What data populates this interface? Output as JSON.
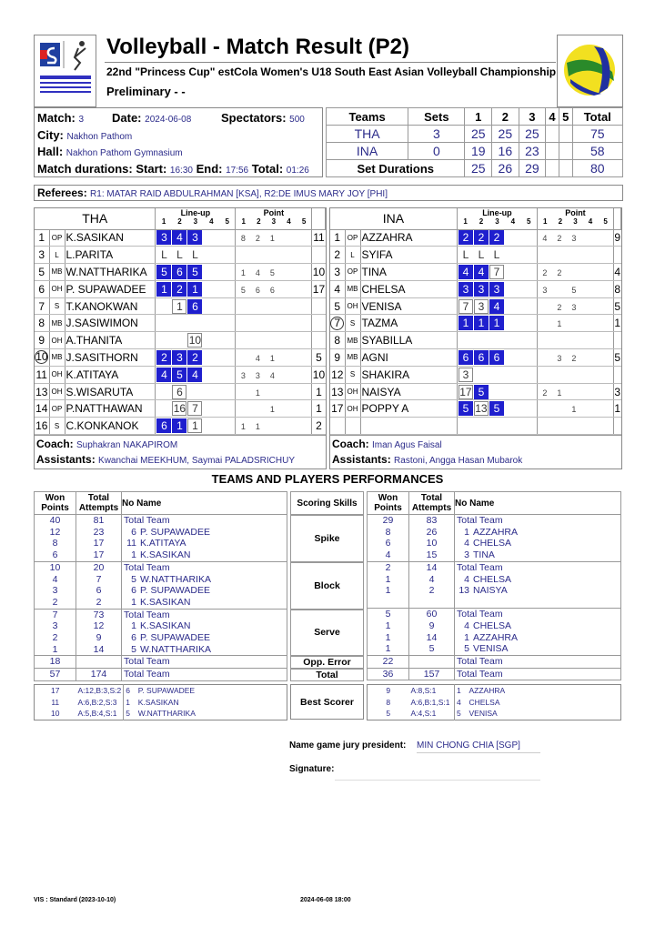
{
  "header": {
    "title": "Volleyball - Match Result (P2)",
    "subtitle": "22nd \"Princess Cup\" estCola  Women's U18 South East Asian Volleyball Championship",
    "phase": "Preliminary - -",
    "left_logo_text": "22nd \"PRINCESS CUP\" WOMEN'S U18 SOUTH EAST ASIAN VOLLEYBALL CHAMPIONSHIP",
    "right_logo_text": "SAVA"
  },
  "match": {
    "match_label": "Match:",
    "match": "3",
    "date_label": "Date:",
    "date": "2024-06-08",
    "spectators_label": "Spectators:",
    "spectators": "500",
    "city_label": "City:",
    "city": "Nakhon Pathom",
    "hall_label": "Hall:",
    "hall": "Nakhon Pathom Gymnasium",
    "dur_label": "Match durations: Start:",
    "start": "16:30",
    "end_label": "End:",
    "end": "17:56",
    "total_label": "Total:",
    "total": "01:26"
  },
  "score": {
    "headers": [
      "Teams",
      "Sets",
      "1",
      "2",
      "3",
      "4",
      "5",
      "Total"
    ],
    "rows": [
      [
        "THA",
        "3",
        "25",
        "25",
        "25",
        "",
        "",
        "75"
      ],
      [
        "INA",
        "0",
        "19",
        "16",
        "23",
        "",
        "",
        "58"
      ]
    ],
    "durations_label": "Set Durations",
    "durations": [
      "25",
      "26",
      "29",
      "",
      "",
      "80"
    ]
  },
  "referees": {
    "label": "Referees:",
    "value": "R1: MATAR RAID ABDULRAHMAN [KSA], R2:DE IMUS MARY JOY [PHI]"
  },
  "lineup_labels": {
    "lineup": "Line-up",
    "point": "Point",
    "sets": [
      "1",
      "2",
      "3",
      "4",
      "5"
    ]
  },
  "colors": {
    "starter": "#1f1fce",
    "value_text": "#2b2b8a"
  },
  "teams": [
    {
      "name": "THA",
      "captain": "10",
      "coach_label": "Coach:",
      "coach": "Suphakran NAKAPIROM",
      "assist_label": "Assistants:",
      "assistants": "Kwanchai MEEKHUM, Saymai PALADSRICHUY",
      "players": [
        {
          "no": "1",
          "pos": "OP",
          "name": "K.SASIKAN",
          "lu": [
            [
              "3",
              "start"
            ],
            [
              "4",
              "start"
            ],
            [
              "3",
              "start"
            ]
          ],
          "pts": [
            "8",
            "2",
            "1",
            "",
            ""
          ],
          "total": "11"
        },
        {
          "no": "3",
          "pos": "L",
          "name": "L.PARITA",
          "lu": [
            [
              "L",
              "lib"
            ],
            [
              "L",
              "lib"
            ],
            [
              "L",
              "lib"
            ]
          ],
          "pts": [
            "",
            "",
            "",
            "",
            ""
          ],
          "total": ""
        },
        {
          "no": "5",
          "pos": "MB",
          "name": "W.NATTHARIKA",
          "lu": [
            [
              "5",
              "start"
            ],
            [
              "6",
              "start"
            ],
            [
              "5",
              "start"
            ]
          ],
          "pts": [
            "1",
            "4",
            "5",
            "",
            ""
          ],
          "total": "10"
        },
        {
          "no": "6",
          "pos": "OH",
          "name": "P. SUPAWADEE",
          "lu": [
            [
              "1",
              "start"
            ],
            [
              "2",
              "start"
            ],
            [
              "1",
              "start"
            ]
          ],
          "pts": [
            "5",
            "6",
            "6",
            "",
            ""
          ],
          "total": "17"
        },
        {
          "no": "7",
          "pos": "S",
          "name": "T.KANOKWAN",
          "lu": [
            [
              "",
              ""
            ],
            [
              "1",
              "sub"
            ],
            [
              "6",
              "start"
            ]
          ],
          "pts": [
            "",
            "",
            "",
            "",
            ""
          ],
          "total": ""
        },
        {
          "no": "8",
          "pos": "MB",
          "name": "J.SASIWIMON",
          "lu": [],
          "pts": [
            "",
            "",
            "",
            "",
            ""
          ],
          "total": ""
        },
        {
          "no": "9",
          "pos": "OH",
          "name": "A.THANITA",
          "lu": [
            [
              "",
              ""
            ],
            [
              "",
              ""
            ],
            [
              "10",
              "sub"
            ]
          ],
          "pts": [
            "",
            "",
            "",
            "",
            ""
          ],
          "total": ""
        },
        {
          "no": "10",
          "pos": "MB",
          "name": "J.SASITHORN",
          "lu": [
            [
              "2",
              "start"
            ],
            [
              "3",
              "start"
            ],
            [
              "2",
              "start"
            ]
          ],
          "pts": [
            "",
            "4",
            "1",
            "",
            ""
          ],
          "total": "5"
        },
        {
          "no": "11",
          "pos": "OH",
          "name": "K.ATITAYA",
          "lu": [
            [
              "4",
              "start"
            ],
            [
              "5",
              "start"
            ],
            [
              "4",
              "start"
            ]
          ],
          "pts": [
            "3",
            "3",
            "4",
            "",
            ""
          ],
          "total": "10"
        },
        {
          "no": "13",
          "pos": "OH",
          "name": "S.WISARUTA",
          "lu": [
            [
              "",
              ""
            ],
            [
              "6",
              "sub"
            ]
          ],
          "pts": [
            "",
            "1",
            "",
            "",
            ""
          ],
          "total": "1"
        },
        {
          "no": "14",
          "pos": "OP",
          "name": "P.NATTHAWAN",
          "lu": [
            [
              "",
              ""
            ],
            [
              "16",
              "sub"
            ],
            [
              "7",
              "sub"
            ]
          ],
          "pts": [
            "",
            "",
            "1",
            "",
            ""
          ],
          "total": "1"
        },
        {
          "no": "16",
          "pos": "S",
          "name": "C.KONKANOK",
          "lu": [
            [
              "6",
              "start"
            ],
            [
              "1",
              "start"
            ],
            [
              "1",
              "sub"
            ]
          ],
          "pts": [
            "1",
            "1",
            "",
            "",
            ""
          ],
          "total": "2"
        }
      ]
    },
    {
      "name": "INA",
      "captain": "7",
      "coach_label": "Coach:",
      "coach": "Iman Agus Faisal",
      "assist_label": "Assistants:",
      "assistants": "Rastoni, Angga Hasan Mubarok",
      "players": [
        {
          "no": "1",
          "pos": "OP",
          "name": "AZZAHRA",
          "lu": [
            [
              "2",
              "start"
            ],
            [
              "2",
              "start"
            ],
            [
              "2",
              "start"
            ]
          ],
          "pts": [
            "4",
            "2",
            "3",
            "",
            ""
          ],
          "total": "9"
        },
        {
          "no": "2",
          "pos": "L",
          "name": "SYIFA",
          "lu": [
            [
              "L",
              "lib"
            ],
            [
              "L",
              "lib"
            ],
            [
              "L",
              "lib"
            ]
          ],
          "pts": [
            "",
            "",
            "",
            "",
            ""
          ],
          "total": ""
        },
        {
          "no": "3",
          "pos": "OP",
          "name": "TINA",
          "lu": [
            [
              "4",
              "start"
            ],
            [
              "4",
              "start"
            ],
            [
              "7",
              "sub"
            ]
          ],
          "pts": [
            "2",
            "2",
            "",
            "",
            ""
          ],
          "total": "4"
        },
        {
          "no": "4",
          "pos": "MB",
          "name": "CHELSA",
          "lu": [
            [
              "3",
              "start"
            ],
            [
              "3",
              "start"
            ],
            [
              "3",
              "start"
            ]
          ],
          "pts": [
            "3",
            "",
            "5",
            "",
            ""
          ],
          "total": "8"
        },
        {
          "no": "5",
          "pos": "OH",
          "name": "VENISA",
          "lu": [
            [
              "7",
              "sub"
            ],
            [
              "3",
              "sub"
            ],
            [
              "4",
              "start"
            ]
          ],
          "pts": [
            "",
            "2",
            "3",
            "",
            ""
          ],
          "total": "5"
        },
        {
          "no": "7",
          "pos": "S",
          "name": "TAZMA",
          "lu": [
            [
              "1",
              "start"
            ],
            [
              "1",
              "start"
            ],
            [
              "1",
              "start"
            ]
          ],
          "pts": [
            "",
            "1",
            "",
            "",
            ""
          ],
          "total": "1"
        },
        {
          "no": "8",
          "pos": "MB",
          "name": "SYABILLA",
          "lu": [],
          "pts": [
            "",
            "",
            "",
            "",
            ""
          ],
          "total": ""
        },
        {
          "no": "9",
          "pos": "MB",
          "name": "AGNI",
          "lu": [
            [
              "6",
              "start"
            ],
            [
              "6",
              "start"
            ],
            [
              "6",
              "start"
            ]
          ],
          "pts": [
            "",
            "3",
            "2",
            "",
            ""
          ],
          "total": "5"
        },
        {
          "no": "12",
          "pos": "S",
          "name": "SHAKIRA",
          "lu": [
            [
              "3",
              "sub"
            ]
          ],
          "pts": [
            "",
            "",
            "",
            "",
            ""
          ],
          "total": ""
        },
        {
          "no": "13",
          "pos": "OH",
          "name": "NAISYA",
          "lu": [
            [
              "17",
              "sub"
            ],
            [
              "5",
              "start"
            ]
          ],
          "pts": [
            "2",
            "1",
            "",
            "",
            ""
          ],
          "total": "3"
        },
        {
          "no": "17",
          "pos": "OH",
          "name": "POPPY A",
          "lu": [
            [
              "5",
              "start"
            ],
            [
              "13",
              "sub"
            ],
            [
              "5",
              "start"
            ]
          ],
          "pts": [
            "",
            "",
            "1",
            "",
            ""
          ],
          "total": "1"
        },
        {
          "no": "",
          "pos": "",
          "name": "",
          "lu": [],
          "pts": [
            "",
            "",
            "",
            "",
            ""
          ],
          "total": ""
        }
      ]
    }
  ],
  "performance": {
    "title": "TEAMS AND PLAYERS PERFORMANCES",
    "headers": {
      "won": "Won Points",
      "attempts": "Total Attempts",
      "noname": "No Name",
      "skills": "Scoring Skills"
    },
    "groups": [
      {
        "skill": "Spike",
        "tha": [
          [
            "40",
            "81",
            "",
            "Total Team"
          ],
          [
            "12",
            "23",
            "6",
            "P. SUPAWADEE"
          ],
          [
            "8",
            "17",
            "11",
            "K.ATITAYA"
          ],
          [
            "6",
            "17",
            "1",
            "K.SASIKAN"
          ]
        ],
        "ina": [
          [
            "29",
            "83",
            "",
            "Total Team"
          ],
          [
            "8",
            "26",
            "1",
            "AZZAHRA"
          ],
          [
            "6",
            "10",
            "4",
            "CHELSA"
          ],
          [
            "4",
            "15",
            "3",
            "TINA"
          ]
        ]
      },
      {
        "skill": "Block",
        "tha": [
          [
            "10",
            "20",
            "",
            "Total Team"
          ],
          [
            "4",
            "7",
            "5",
            "W.NATTHARIKA"
          ],
          [
            "3",
            "6",
            "6",
            "P. SUPAWADEE"
          ],
          [
            "2",
            "2",
            "1",
            "K.SASIKAN"
          ]
        ],
        "ina": [
          [
            "2",
            "14",
            "",
            "Total Team"
          ],
          [
            "1",
            "4",
            "4",
            "CHELSA"
          ],
          [
            "1",
            "2",
            "13",
            "NAISYA"
          ],
          [
            "",
            "",
            "",
            ""
          ]
        ]
      },
      {
        "skill": "Serve",
        "tha": [
          [
            "7",
            "73",
            "",
            "Total Team"
          ],
          [
            "3",
            "12",
            "1",
            "K.SASIKAN"
          ],
          [
            "2",
            "9",
            "6",
            "P. SUPAWADEE"
          ],
          [
            "1",
            "14",
            "5",
            "W.NATTHARIKA"
          ]
        ],
        "ina": [
          [
            "5",
            "60",
            "",
            "Total Team"
          ],
          [
            "1",
            "9",
            "4",
            "CHELSA"
          ],
          [
            "1",
            "14",
            "1",
            "AZZAHRA"
          ],
          [
            "1",
            "5",
            "5",
            "VENISA"
          ]
        ]
      },
      {
        "skill": "Opp. Error",
        "tha": [
          [
            "18",
            "",
            "",
            "Total Team"
          ]
        ],
        "ina": [
          [
            "22",
            "",
            "",
            "Total Team"
          ]
        ]
      },
      {
        "skill": "Total",
        "tha": [
          [
            "57",
            "174",
            "",
            "Total Team"
          ]
        ],
        "ina": [
          [
            "36",
            "157",
            "",
            "Total Team"
          ]
        ]
      }
    ],
    "best_scorer": {
      "label": "Best Scorer",
      "tha": [
        [
          "17",
          "A:12,B:3,S:2",
          "6",
          "P. SUPAWADEE"
        ],
        [
          "11",
          "A:6,B:2,S:3",
          "1",
          "K.SASIKAN"
        ],
        [
          "10",
          "A:5,B:4,S:1",
          "5",
          "W.NATTHARIKA"
        ]
      ],
      "ina": [
        [
          "9",
          "A:8,S:1",
          "1",
          "AZZAHRA"
        ],
        [
          "8",
          "A:6,B:1,S:1",
          "4",
          "CHELSA"
        ],
        [
          "5",
          "A:4,S:1",
          "5",
          "VENISA"
        ]
      ]
    }
  },
  "jury": {
    "label": "Name game jury president:",
    "value": "MIN CHONG CHIA [SGP]",
    "signature_label": "Signature:"
  },
  "footer": {
    "left": "VIS : Standard (2023-10-10)",
    "right": "2024-06-08 18:00"
  }
}
